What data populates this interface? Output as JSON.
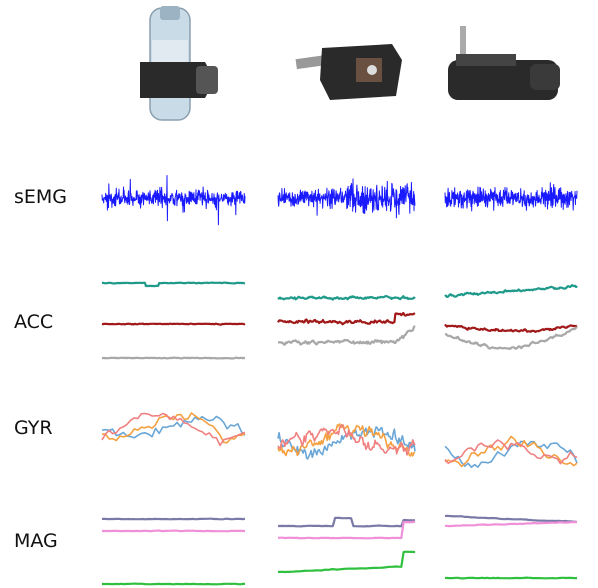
{
  "rows": [
    {
      "label": "sEMG"
    },
    {
      "label": "ACC"
    },
    {
      "label": "GYR"
    },
    {
      "label": "MAG"
    }
  ],
  "columns": [
    {
      "grasp_icon": "hand-holding-bottle-icon"
    },
    {
      "grasp_icon": "hand-pinch-card-icon"
    },
    {
      "grasp_icon": "hand-holding-knife-icon"
    }
  ],
  "colors": {
    "emg": "#1a1aff",
    "acc": [
      "#1f9a8a",
      "#a01818",
      "#a8a8a8"
    ],
    "gyr": [
      "#6aa6d6",
      "#f4a040",
      "#f08080"
    ],
    "mag": [
      "#7a7aa8",
      "#f090d8",
      "#30c040"
    ]
  }
}
